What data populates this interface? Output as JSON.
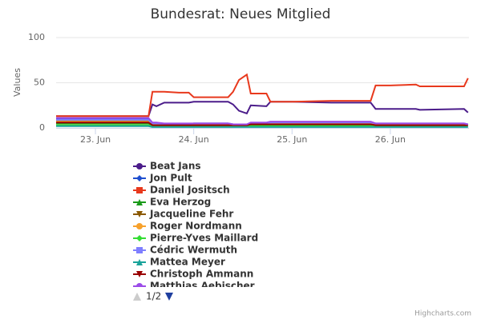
{
  "chart_data": {
    "type": "line",
    "title": "Bundesrat: Neues Mitglied",
    "y_label": "Values",
    "x": [
      22.6,
      23.54,
      23.58,
      23.62,
      23.7,
      23.85,
      23.95,
      24.0,
      24.2,
      24.35,
      24.4,
      24.46,
      24.54,
      24.58,
      24.74,
      24.78,
      25.0,
      25.4,
      25.8,
      25.85,
      26.0,
      26.26,
      26.3,
      26.75,
      26.79
    ],
    "xlim": [
      22.6,
      26.8
    ],
    "xticks": [
      {
        "value": 23,
        "label": "23. Jun"
      },
      {
        "value": 24,
        "label": "24. Jun"
      },
      {
        "value": 25,
        "label": "25. Jun"
      },
      {
        "value": 26,
        "label": "26. Jun"
      }
    ],
    "ylim": [
      0,
      100
    ],
    "yticks": [
      0,
      50,
      100
    ],
    "grid": true,
    "series": [
      {
        "name": "Beat Jans",
        "color": "#4b1c8a",
        "marker": "circle",
        "values": [
          13,
          13,
          26,
          24,
          28,
          28,
          28,
          29,
          29,
          29,
          26,
          19,
          16,
          25,
          24,
          29,
          29,
          28,
          28,
          21,
          21,
          21,
          20,
          21,
          17
        ]
      },
      {
        "name": "Jon Pult",
        "color": "#1f4fcf",
        "marker": "diamond",
        "values": [
          10,
          10,
          5,
          5,
          4,
          4,
          4,
          5,
          5,
          5,
          4,
          4,
          3,
          5,
          5,
          6,
          6,
          6,
          6,
          4,
          4,
          4,
          4,
          4,
          4
        ]
      },
      {
        "name": "Daniel Jositsch",
        "color": "#e8391d",
        "marker": "square",
        "values": [
          13,
          13,
          40,
          40,
          40,
          39,
          39,
          34,
          34,
          34,
          40,
          53,
          59,
          38,
          38,
          29,
          29,
          30,
          30,
          47,
          47,
          48,
          46,
          46,
          55
        ]
      },
      {
        "name": "Eva Herzog",
        "color": "#1a9a1a",
        "marker": "triangle",
        "values": [
          5,
          5,
          3,
          3,
          3,
          3,
          3,
          3,
          3,
          3,
          3,
          3,
          3,
          3,
          3,
          3,
          3,
          3,
          3,
          3,
          3,
          3,
          3,
          3,
          3
        ]
      },
      {
        "name": "Jacqueline Fehr",
        "color": "#8b5a00",
        "marker": "triangle-down",
        "values": [
          8,
          8,
          4,
          4,
          4,
          4,
          4,
          4,
          4,
          4,
          3,
          3,
          3,
          5,
          5,
          6,
          6,
          6,
          6,
          4,
          4,
          4,
          4,
          4,
          3
        ]
      },
      {
        "name": "Roger Nordmann",
        "color": "#f7a12c",
        "marker": "circle",
        "values": [
          7,
          7,
          4,
          4,
          4,
          4,
          4,
          4,
          4,
          4,
          4,
          4,
          3,
          4,
          4,
          5,
          5,
          5,
          5,
          4,
          4,
          4,
          4,
          4,
          3
        ]
      },
      {
        "name": "Pierre-Yves Maillard",
        "color": "#33dd33",
        "marker": "diamond",
        "values": [
          3,
          3,
          2,
          2,
          2,
          2,
          2,
          2,
          2,
          2,
          2,
          2,
          2,
          2,
          2,
          2,
          2,
          2,
          2,
          2,
          2,
          2,
          2,
          2,
          2
        ]
      },
      {
        "name": "Cédric Wermuth",
        "color": "#7f7fff",
        "marker": "square",
        "values": [
          9,
          9,
          5,
          5,
          4,
          4,
          4,
          5,
          5,
          5,
          4,
          4,
          4,
          5,
          5,
          6,
          6,
          6,
          6,
          5,
          5,
          5,
          5,
          5,
          4
        ]
      },
      {
        "name": "Mattea Meyer",
        "color": "#1aa39a",
        "marker": "triangle",
        "values": [
          2,
          2,
          1,
          1,
          1,
          1,
          1,
          1,
          1,
          1,
          1,
          1,
          1,
          1,
          1,
          1,
          1,
          1,
          1,
          1,
          1,
          1,
          1,
          1,
          1
        ]
      },
      {
        "name": "Christoph Ammann",
        "color": "#990000",
        "marker": "triangle-down",
        "values": [
          6,
          6,
          3,
          3,
          3,
          3,
          3,
          3,
          3,
          3,
          3,
          3,
          3,
          4,
          4,
          4,
          4,
          4,
          4,
          3,
          3,
          3,
          3,
          3,
          3
        ]
      },
      {
        "name": "Matthias Aebischer",
        "color": "#9b4be8",
        "marker": "circle",
        "values": [
          11,
          11,
          6,
          6,
          5,
          5,
          5,
          5,
          5,
          5,
          4,
          4,
          4,
          6,
          6,
          7,
          7,
          7,
          7,
          5,
          5,
          5,
          5,
          5,
          4
        ]
      }
    ],
    "legend_page": "1/2",
    "credits": "Highcharts.com"
  }
}
